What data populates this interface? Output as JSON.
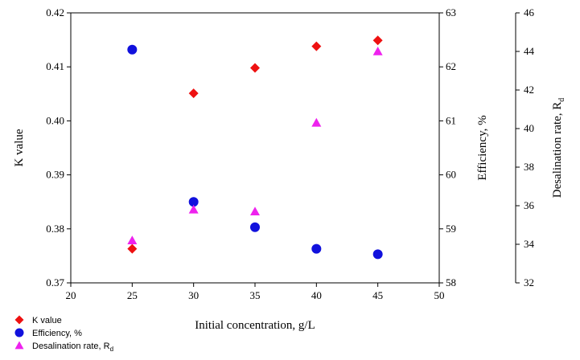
{
  "chart_data": {
    "type": "scatter",
    "xlabel": "Initial concentration, g/L",
    "x_ticks": [
      20,
      25,
      30,
      35,
      40,
      45,
      50
    ],
    "xlim": [
      20,
      50
    ],
    "axes": [
      {
        "id": "k",
        "label": "K value",
        "lim": [
          0.37,
          0.42
        ],
        "ticks": [
          "0.37",
          "0.38",
          "0.39",
          "0.40",
          "0.41",
          "0.42"
        ]
      },
      {
        "id": "eff",
        "label": "Efficiency, %",
        "lim": [
          58,
          63
        ],
        "ticks": [
          "58",
          "59",
          "60",
          "61",
          "62",
          "63"
        ]
      },
      {
        "id": "rd",
        "label_main": "Desalination rate, R",
        "label_sub": "d",
        "lim": [
          32,
          46
        ],
        "ticks": [
          "32",
          "34",
          "36",
          "38",
          "40",
          "42",
          "44",
          "46"
        ]
      }
    ],
    "series": [
      {
        "name": "K value",
        "axis": "k",
        "marker": "diamond",
        "color": "#ee1111",
        "x": [
          25,
          30,
          35,
          40,
          45
        ],
        "y": [
          0.3763,
          0.4051,
          0.4098,
          0.4138,
          0.4149
        ]
      },
      {
        "name": "Efficiency, %",
        "axis": "eff",
        "marker": "circle",
        "color": "#1111dd",
        "x": [
          25,
          30,
          35,
          40,
          45
        ],
        "y": [
          62.32,
          59.5,
          59.03,
          58.63,
          58.53
        ]
      },
      {
        "name_main": "Desalination rate, R",
        "name_sub": "d",
        "axis": "rd",
        "marker": "triangle",
        "color": "#ee22ee",
        "x": [
          25,
          30,
          35,
          40,
          45
        ],
        "y": [
          34.2,
          35.8,
          35.7,
          40.3,
          44.0
        ]
      }
    ],
    "legend_position": "bottom-left",
    "grid": false
  }
}
